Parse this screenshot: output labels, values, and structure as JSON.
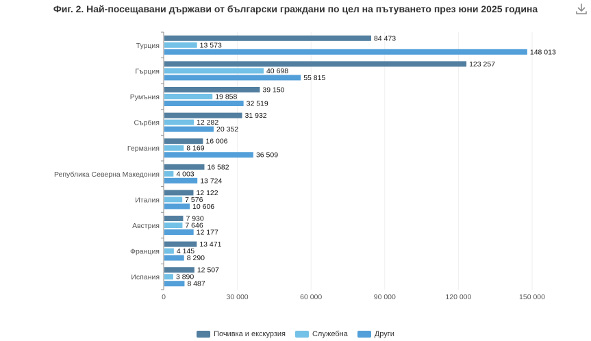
{
  "title": "Фиг. 2. Най-посещавани държави от български граждани по цел на пътуването през юни 2025 година",
  "icons": {
    "download": "download-icon"
  },
  "colors": {
    "series": [
      "#527E9F",
      "#73C1E6",
      "#529FD9"
    ],
    "axis": "#888888",
    "grid": "#eeeeee"
  },
  "chart_data": {
    "type": "bar",
    "orientation": "horizontal",
    "title": "Фиг. 2. Най-посещавани държави от български граждани по цел на пътуването през юни 2025 година",
    "categories": [
      "Турция",
      "Гърция",
      "Румъния",
      "Сърбия",
      "Германия",
      "Република Северна Македония",
      "Италия",
      "Австрия",
      "Франция",
      "Испания"
    ],
    "series": [
      {
        "name": "Почивка и екскурзия",
        "values": [
          84473,
          123257,
          39150,
          31932,
          16006,
          16582,
          12122,
          7930,
          13471,
          12507
        ]
      },
      {
        "name": "Служебна",
        "values": [
          13573,
          40698,
          19858,
          12282,
          8169,
          4003,
          7576,
          7646,
          4145,
          3890
        ]
      },
      {
        "name": "Други",
        "values": [
          148013,
          55815,
          32519,
          20352,
          36509,
          13724,
          10606,
          12177,
          8290,
          8487
        ]
      }
    ],
    "x_ticks": [
      0,
      30000,
      60000,
      90000,
      120000,
      150000
    ],
    "x_tick_labels": [
      "0",
      "30 000",
      "60 000",
      "90 000",
      "120 000",
      "150 000"
    ],
    "xlim": [
      0,
      150000
    ],
    "grid": true,
    "legend_position": "bottom"
  }
}
